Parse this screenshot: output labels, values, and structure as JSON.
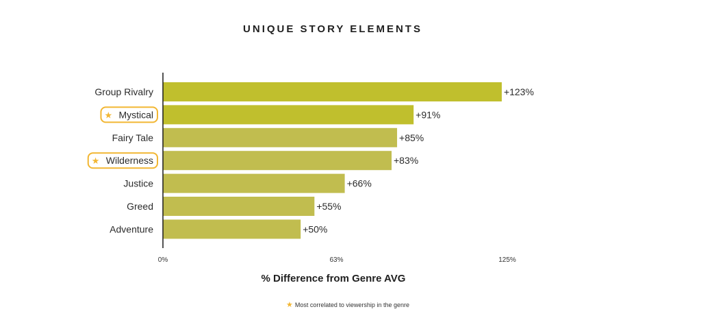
{
  "chart_data": {
    "type": "bar",
    "orientation": "horizontal",
    "title": "UNIQUE STORY ELEMENTS",
    "xlabel": "% Difference from Genre AVG",
    "ylabel": "",
    "categories": [
      "Group Rivalry",
      "Mystical",
      "Fairy Tale",
      "Wilderness",
      "Justice",
      "Greed",
      "Adventure"
    ],
    "values": [
      123,
      91,
      85,
      83,
      66,
      55,
      50
    ],
    "value_labels": [
      "+123%",
      "+91%",
      "+85%",
      "+83%",
      "+66%",
      "+55%",
      "+50%"
    ],
    "highlighted": [
      false,
      true,
      false,
      true,
      false,
      false,
      false
    ],
    "xlim": [
      0,
      125
    ],
    "xticks": [
      0,
      63,
      125
    ],
    "xtick_labels": [
      "0%",
      "63%",
      "125%"
    ],
    "grid": false,
    "bar_colors": [
      "#c0bf2d",
      "#c0bf2d",
      "#c1bd4f",
      "#c1bd4f",
      "#c1bd4f",
      "#c1bd4f",
      "#c1bd4f"
    ],
    "highlight_color": "#f2b632"
  },
  "footnote": {
    "icon": "star-icon",
    "text": "Most correlated to viewership in the genre"
  }
}
